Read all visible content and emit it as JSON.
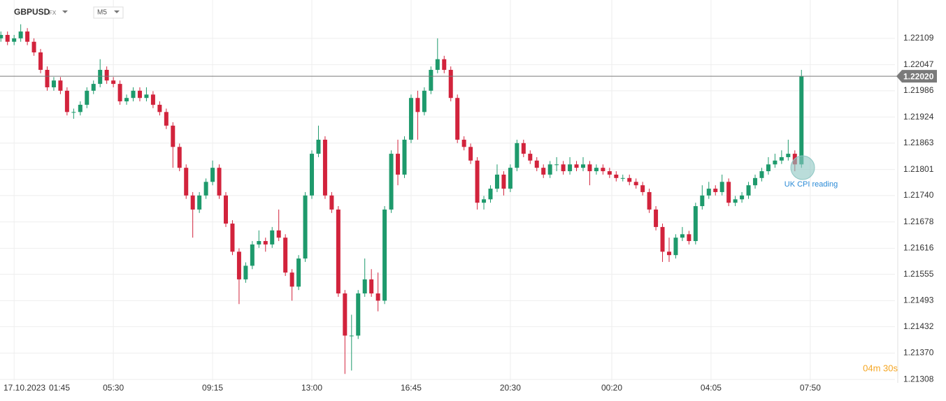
{
  "chart_data": {
    "type": "candlestick",
    "symbol": "GBPUSD",
    "market": "FX",
    "timeframe": "M5",
    "date_label": "17.10.2023",
    "x": [
      75,
      90,
      105,
      120,
      135,
      150,
      165,
      180,
      195,
      210,
      225,
      240,
      255,
      270,
      285,
      300,
      315,
      330,
      345,
      360,
      375,
      390,
      405,
      420,
      435,
      450,
      465,
      480,
      495,
      510,
      525,
      540,
      555,
      570,
      585,
      600,
      615,
      630,
      645,
      660,
      675,
      690,
      705,
      720,
      735,
      750,
      765,
      780,
      795,
      810,
      825,
      840,
      855,
      870,
      885,
      900,
      915,
      930,
      945,
      960,
      975,
      990,
      1005,
      1020,
      1035,
      1050,
      1065,
      1080,
      1095,
      1110,
      1125,
      1140,
      1155,
      1170,
      1185,
      1200,
      1215,
      1230,
      1245,
      1260,
      1275,
      1290,
      1305,
      1320,
      1335,
      1350,
      1365,
      1380,
      1395,
      1410,
      1425,
      1440,
      1455,
      1470,
      1485,
      1500,
      1515,
      1530,
      1545,
      1560,
      1575,
      1590,
      1605,
      1620,
      1635,
      1650,
      1665,
      1680,
      1695,
      1710,
      1725,
      1740,
      1755,
      1770,
      1785,
      1800,
      1815,
      1830,
      1845,
      1860,
      1875,
      1890
    ],
    "open": [
      1.22109,
      1.22117,
      1.22101,
      1.22109,
      1.22125,
      1.22101,
      1.22076,
      1.22035,
      1.21994,
      1.2201,
      1.21986,
      1.21936,
      1.21936,
      1.21953,
      1.21986,
      1.22002,
      1.22035,
      1.2201,
      1.22002,
      1.21961,
      1.21969,
      1.21986,
      1.21969,
      1.21977,
      1.21953,
      1.21936,
      1.21904,
      1.21854,
      1.21805,
      1.2174,
      1.21707,
      1.2174,
      1.21772,
      1.21805,
      1.2174,
      1.21674,
      1.21608,
      1.21543,
      1.21575,
      1.21625,
      1.21633,
      1.21625,
      1.21658,
      1.21641,
      1.21559,
      1.21526,
      1.21592,
      1.2174,
      1.21838,
      1.21871,
      1.2174,
      1.21707,
      1.2151,
      1.21411,
      1.21411,
      1.2151,
      1.21543,
      1.2151,
      1.21493,
      1.21707,
      1.21838,
      1.21789,
      1.21871,
      1.21969,
      1.21936,
      1.21986,
      1.22035,
      1.2206,
      1.22035,
      1.21969,
      1.21871,
      1.21854,
      1.21822,
      1.21723,
      1.21731,
      1.21756,
      1.21789,
      1.21756,
      1.21805,
      1.21863,
      1.21838,
      1.21822,
      1.21805,
      1.21789,
      1.21813,
      1.21813,
      1.21797,
      1.21813,
      1.21805,
      1.21813,
      1.21797,
      1.21805,
      1.21797,
      1.21789,
      1.21781,
      1.21781,
      1.21772,
      1.21764,
      1.21748,
      1.21707,
      1.21666,
      1.21608,
      1.216,
      1.21641,
      1.21649,
      1.21633,
      1.21715,
      1.2174,
      1.21756,
      1.21748,
      1.21772,
      1.21723,
      1.21731,
      1.2174,
      1.21764,
      1.21781,
      1.21797,
      1.21813,
      1.21822,
      1.2183,
      1.21838,
      1.21813
    ],
    "high": [
      1.22125,
      1.22125,
      1.22117,
      1.22142,
      1.22133,
      1.22109,
      1.22084,
      1.22043,
      1.22018,
      1.22018,
      1.21994,
      1.21944,
      1.21961,
      1.21994,
      1.2201,
      1.2206,
      1.22043,
      1.22018,
      1.2201,
      1.21977,
      1.21994,
      1.21994,
      1.21994,
      1.21985,
      1.21961,
      1.21944,
      1.21912,
      1.21862,
      1.21813,
      1.21748,
      1.21748,
      1.2178,
      1.21822,
      1.21813,
      1.21748,
      1.21682,
      1.21616,
      1.21583,
      1.21633,
      1.21658,
      1.21641,
      1.21666,
      1.21707,
      1.21649,
      1.21567,
      1.216,
      1.21748,
      1.21846,
      1.21904,
      1.21879,
      1.21748,
      1.21715,
      1.21518,
      1.2146,
      1.21518,
      1.21592,
      1.21567,
      1.21559,
      1.21715,
      1.21846,
      1.21871,
      1.21879,
      1.21977,
      1.21986,
      1.21994,
      1.22043,
      1.22109,
      1.22068,
      1.22043,
      1.21977,
      1.21879,
      1.21862,
      1.2183,
      1.21739,
      1.21764,
      1.21813,
      1.21797,
      1.21813,
      1.21871,
      1.21871,
      1.21846,
      1.2183,
      1.21813,
      1.21821,
      1.2183,
      1.21821,
      1.2183,
      1.21821,
      1.2183,
      1.21821,
      1.21813,
      1.21813,
      1.21805,
      1.21797,
      1.21789,
      1.21789,
      1.2178,
      1.21772,
      1.21756,
      1.21715,
      1.21674,
      1.21641,
      1.21649,
      1.21666,
      1.21657,
      1.21723,
      1.21764,
      1.21772,
      1.21764,
      1.21789,
      1.2178,
      1.21739,
      1.21748,
      1.21772,
      1.21789,
      1.21805,
      1.2183,
      1.21838,
      1.21846,
      1.21871,
      1.21846,
      1.22035
    ],
    "low": [
      1.22101,
      1.22093,
      1.22093,
      1.22101,
      1.22093,
      1.22068,
      1.22027,
      1.21986,
      1.21986,
      1.21978,
      1.21928,
      1.2192,
      1.21928,
      1.21945,
      1.21978,
      1.21994,
      1.22002,
      1.21994,
      1.21953,
      1.21953,
      1.21961,
      1.21961,
      1.21961,
      1.21945,
      1.21928,
      1.21896,
      1.21805,
      1.21797,
      1.21732,
      1.21641,
      1.21699,
      1.21732,
      1.21764,
      1.21732,
      1.21666,
      1.216,
      1.21485,
      1.21535,
      1.21567,
      1.21617,
      1.21608,
      1.21617,
      1.21633,
      1.21551,
      1.21493,
      1.21518,
      1.21584,
      1.21732,
      1.2183,
      1.21732,
      1.21699,
      1.21502,
      1.21321,
      1.21329,
      1.21403,
      1.21502,
      1.21502,
      1.21468,
      1.21485,
      1.21699,
      1.21764,
      1.21781,
      1.21863,
      1.21871,
      1.21928,
      1.21978,
      1.22027,
      1.22027,
      1.21961,
      1.21863,
      1.21846,
      1.21814,
      1.21707,
      1.21707,
      1.21723,
      1.21748,
      1.2174,
      1.21748,
      1.21797,
      1.2183,
      1.21814,
      1.21797,
      1.21781,
      1.21781,
      1.21797,
      1.21789,
      1.21789,
      1.21797,
      1.21797,
      1.21764,
      1.21789,
      1.21789,
      1.21781,
      1.21773,
      1.21773,
      1.21764,
      1.21756,
      1.2174,
      1.21699,
      1.21658,
      1.21584,
      1.21584,
      1.21592,
      1.21633,
      1.21625,
      1.21625,
      1.21707,
      1.21732,
      1.2174,
      1.2174,
      1.21715,
      1.21715,
      1.21723,
      1.21732,
      1.21756,
      1.21773,
      1.21789,
      1.21805,
      1.21814,
      1.21822,
      1.21797,
      1.21805
    ],
    "close": [
      1.22117,
      1.22101,
      1.22109,
      1.22125,
      1.22101,
      1.22076,
      1.22035,
      1.21994,
      1.2201,
      1.21986,
      1.21936,
      1.21936,
      1.21953,
      1.21986,
      1.22002,
      1.22035,
      1.2201,
      1.22002,
      1.21961,
      1.21969,
      1.21986,
      1.21969,
      1.21977,
      1.21953,
      1.21936,
      1.21904,
      1.21854,
      1.21805,
      1.2174,
      1.21707,
      1.2174,
      1.21772,
      1.21805,
      1.2174,
      1.21674,
      1.21608,
      1.21543,
      1.21575,
      1.21625,
      1.21633,
      1.21625,
      1.21658,
      1.21641,
      1.21559,
      1.21526,
      1.21592,
      1.2174,
      1.21838,
      1.21871,
      1.2174,
      1.21707,
      1.2151,
      1.21411,
      1.21411,
      1.2151,
      1.21543,
      1.2151,
      1.21493,
      1.21707,
      1.21838,
      1.21789,
      1.21871,
      1.21969,
      1.21936,
      1.21986,
      1.22035,
      1.2206,
      1.22035,
      1.21969,
      1.21871,
      1.21854,
      1.21822,
      1.21723,
      1.21731,
      1.21756,
      1.21789,
      1.21756,
      1.21805,
      1.21863,
      1.21838,
      1.21822,
      1.21805,
      1.21789,
      1.21813,
      1.21813,
      1.21797,
      1.21813,
      1.21805,
      1.21813,
      1.21797,
      1.21805,
      1.21797,
      1.21789,
      1.21781,
      1.21781,
      1.21772,
      1.21764,
      1.21748,
      1.21707,
      1.21666,
      1.21608,
      1.216,
      1.21641,
      1.21649,
      1.21633,
      1.21715,
      1.2174,
      1.21756,
      1.21748,
      1.21772,
      1.21723,
      1.21731,
      1.2174,
      1.21764,
      1.21781,
      1.21797,
      1.21813,
      1.21822,
      1.2183,
      1.21838,
      1.21813,
      1.2202
    ],
    "up_color": "#1e9a6c",
    "down_color": "#d2233c",
    "xlim": [
      73,
      2102
    ],
    "xticks": [
      {
        "value": 105,
        "label": "01:45"
      },
      {
        "value": 330,
        "label": "05:30"
      },
      {
        "value": 555,
        "label": "09:15"
      },
      {
        "value": 780,
        "label": "13:00"
      },
      {
        "value": 1005,
        "label": "16:45"
      },
      {
        "value": 1230,
        "label": "20:30"
      },
      {
        "value": 1460,
        "label": "00:20"
      },
      {
        "value": 1685,
        "label": "04:05"
      },
      {
        "value": 1910,
        "label": "07:50"
      }
    ],
    "ylim": [
      1.21305,
      1.22199
    ],
    "yticks": [
      1.21308,
      {
        "value": 1.2137,
        "label": "1.21370"
      },
      1.21432,
      1.21493,
      1.21555,
      1.21616,
      1.21678,
      {
        "value": 1.2174,
        "label": "1.21740"
      },
      1.21801,
      1.21863,
      1.21924,
      1.21986,
      1.22047,
      1.22109
    ],
    "current_price": {
      "value": 1.2202,
      "label": "1.22020"
    },
    "annotation": "UK CPI reading",
    "countdown": "04m 30s",
    "grid": true
  }
}
